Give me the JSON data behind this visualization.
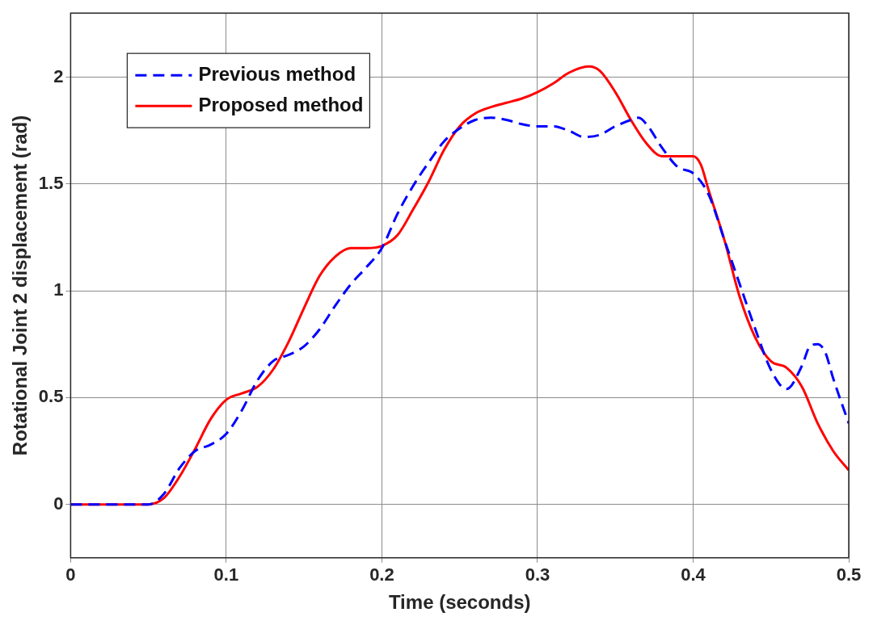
{
  "chart_data": {
    "type": "line",
    "xlabel": "Time (seconds)",
    "ylabel": "Rotational Joint 2 displacement (rad)",
    "xlim": [
      0,
      0.5
    ],
    "xticks": [
      0,
      0.1,
      0.2,
      0.3,
      0.4,
      0.5
    ],
    "ylim": [
      -0.25,
      2.3
    ],
    "yticks": [
      0,
      0.5,
      1,
      1.5,
      2
    ],
    "grid": true,
    "legend": "top left",
    "marker": "none",
    "series": [
      {
        "name": "Previous method",
        "color": "#0000ff",
        "line_style": "dashed",
        "x": [
          0,
          0.05,
          0.06,
          0.07,
          0.08,
          0.09,
          0.1,
          0.11,
          0.12,
          0.13,
          0.14,
          0.15,
          0.16,
          0.17,
          0.18,
          0.19,
          0.2,
          0.21,
          0.22,
          0.23,
          0.24,
          0.25,
          0.26,
          0.27,
          0.28,
          0.29,
          0.3,
          0.31,
          0.32,
          0.33,
          0.34,
          0.35,
          0.36,
          0.365,
          0.37,
          0.38,
          0.39,
          0.4,
          0.41,
          0.42,
          0.43,
          0.44,
          0.45,
          0.46,
          0.47,
          0.475,
          0.48,
          0.485,
          0.49,
          0.5
        ],
        "values": [
          0,
          0,
          0.05,
          0.17,
          0.25,
          0.28,
          0.33,
          0.44,
          0.58,
          0.67,
          0.7,
          0.74,
          0.82,
          0.93,
          1.03,
          1.11,
          1.2,
          1.36,
          1.49,
          1.6,
          1.7,
          1.76,
          1.8,
          1.81,
          1.8,
          1.78,
          1.77,
          1.77,
          1.75,
          1.72,
          1.73,
          1.77,
          1.8,
          1.81,
          1.78,
          1.67,
          1.58,
          1.55,
          1.45,
          1.24,
          1.03,
          0.82,
          0.63,
          0.54,
          0.65,
          0.74,
          0.75,
          0.71,
          0.59,
          0.38
        ]
      },
      {
        "name": "Proposed method",
        "color": "#ff0000",
        "line_style": "solid",
        "x": [
          0,
          0.05,
          0.06,
          0.07,
          0.08,
          0.09,
          0.1,
          0.11,
          0.12,
          0.13,
          0.14,
          0.15,
          0.16,
          0.17,
          0.18,
          0.19,
          0.2,
          0.21,
          0.22,
          0.23,
          0.24,
          0.25,
          0.26,
          0.27,
          0.28,
          0.29,
          0.3,
          0.31,
          0.32,
          0.333,
          0.34,
          0.35,
          0.36,
          0.37,
          0.38,
          0.39,
          0.4,
          0.405,
          0.41,
          0.42,
          0.43,
          0.44,
          0.45,
          0.46,
          0.47,
          0.48,
          0.49,
          0.5
        ],
        "values": [
          0,
          0,
          0.03,
          0.13,
          0.26,
          0.4,
          0.49,
          0.52,
          0.55,
          0.63,
          0.76,
          0.92,
          1.07,
          1.16,
          1.2,
          1.2,
          1.21,
          1.26,
          1.38,
          1.51,
          1.66,
          1.77,
          1.83,
          1.86,
          1.88,
          1.9,
          1.93,
          1.97,
          2.02,
          2.05,
          2.03,
          1.93,
          1.8,
          1.69,
          1.63,
          1.63,
          1.63,
          1.59,
          1.47,
          1.24,
          0.97,
          0.78,
          0.67,
          0.64,
          0.55,
          0.38,
          0.25,
          0.16
        ]
      }
    ]
  }
}
